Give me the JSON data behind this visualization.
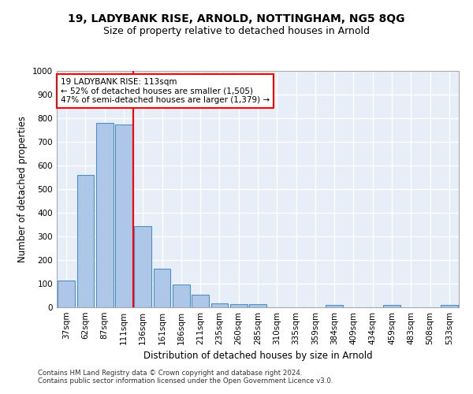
{
  "title1": "19, LADYBANK RISE, ARNOLD, NOTTINGHAM, NG5 8QG",
  "title2": "Size of property relative to detached houses in Arnold",
  "xlabel": "Distribution of detached houses by size in Arnold",
  "ylabel": "Number of detached properties",
  "categories": [
    "37sqm",
    "62sqm",
    "87sqm",
    "111sqm",
    "136sqm",
    "161sqm",
    "186sqm",
    "211sqm",
    "235sqm",
    "260sqm",
    "285sqm",
    "310sqm",
    "335sqm",
    "359sqm",
    "384sqm",
    "409sqm",
    "434sqm",
    "459sqm",
    "483sqm",
    "508sqm",
    "533sqm"
  ],
  "bar_values": [
    112,
    560,
    780,
    775,
    345,
    165,
    98,
    53,
    18,
    14,
    13,
    0,
    0,
    0,
    10,
    0,
    0,
    9,
    0,
    0,
    10
  ],
  "bar_color": "#aec6e8",
  "bar_edge_color": "#4a90c4",
  "red_line_x": 3.5,
  "annotation_text": "19 LADYBANK RISE: 113sqm\n← 52% of detached houses are smaller (1,505)\n47% of semi-detached houses are larger (1,379) →",
  "annotation_box_color": "white",
  "annotation_box_edge_color": "red",
  "vline_color": "red",
  "ylim": [
    0,
    1000
  ],
  "yticks": [
    0,
    100,
    200,
    300,
    400,
    500,
    600,
    700,
    800,
    900,
    1000
  ],
  "footer1": "Contains HM Land Registry data © Crown copyright and database right 2024.",
  "footer2": "Contains public sector information licensed under the Open Government Licence v3.0.",
  "bg_color": "#e8eef8",
  "grid_color": "white",
  "title1_fontsize": 10,
  "title2_fontsize": 9,
  "tick_fontsize": 7.5,
  "ylabel_fontsize": 8.5,
  "xlabel_fontsize": 8.5,
  "annotation_fontsize": 7.5
}
